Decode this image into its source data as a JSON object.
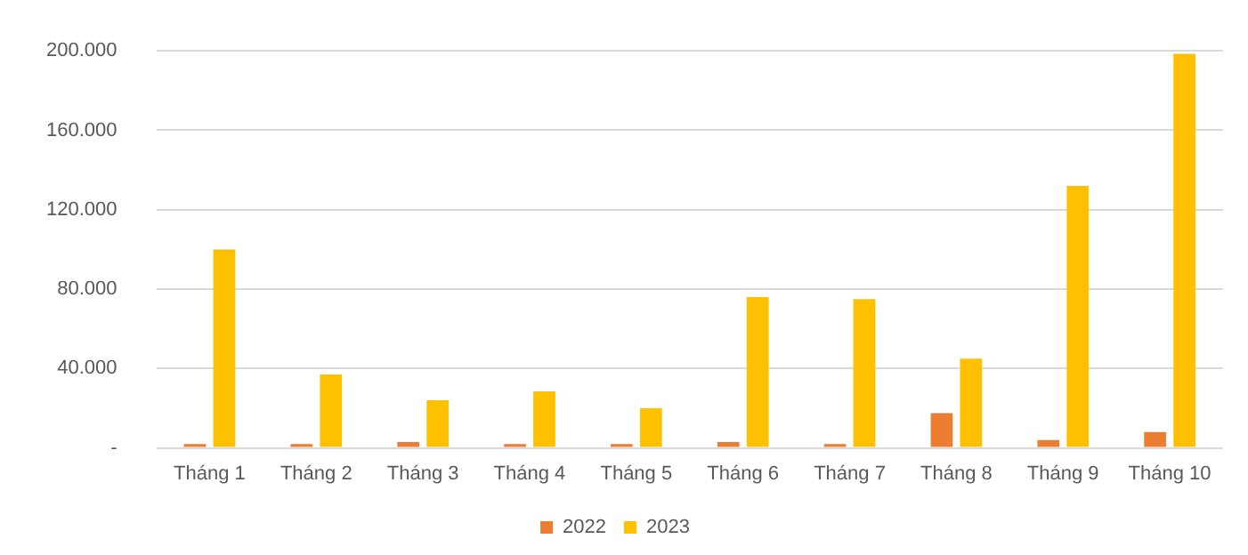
{
  "chart_data": {
    "type": "bar",
    "categories": [
      "Tháng 1",
      "Tháng 2",
      "Tháng 3",
      "Tháng 4",
      "Tháng 5",
      "Tháng 6",
      "Tháng 7",
      "Tháng 8",
      "Tháng 9",
      "Tháng 10"
    ],
    "series": [
      {
        "name": "2022",
        "color": "#ed7d31",
        "values": [
          2000,
          2000,
          3000,
          2000,
          2000,
          3000,
          2000,
          17500,
          4000,
          8000
        ]
      },
      {
        "name": "2023",
        "color": "#ffc000",
        "values": [
          100000,
          37000,
          24000,
          28500,
          20000,
          76000,
          75000,
          45000,
          132000,
          198500
        ]
      }
    ],
    "ylim": [
      0,
      200000
    ],
    "yticks": [
      {
        "value": 0,
        "label": "-"
      },
      {
        "value": 40000,
        "label": "40.000"
      },
      {
        "value": 80000,
        "label": "80.000"
      },
      {
        "value": 120000,
        "label": "120.000"
      },
      {
        "value": 160000,
        "label": "160.000"
      },
      {
        "value": 200000,
        "label": "200.000"
      }
    ],
    "grid": "y",
    "legend": "bottom"
  }
}
